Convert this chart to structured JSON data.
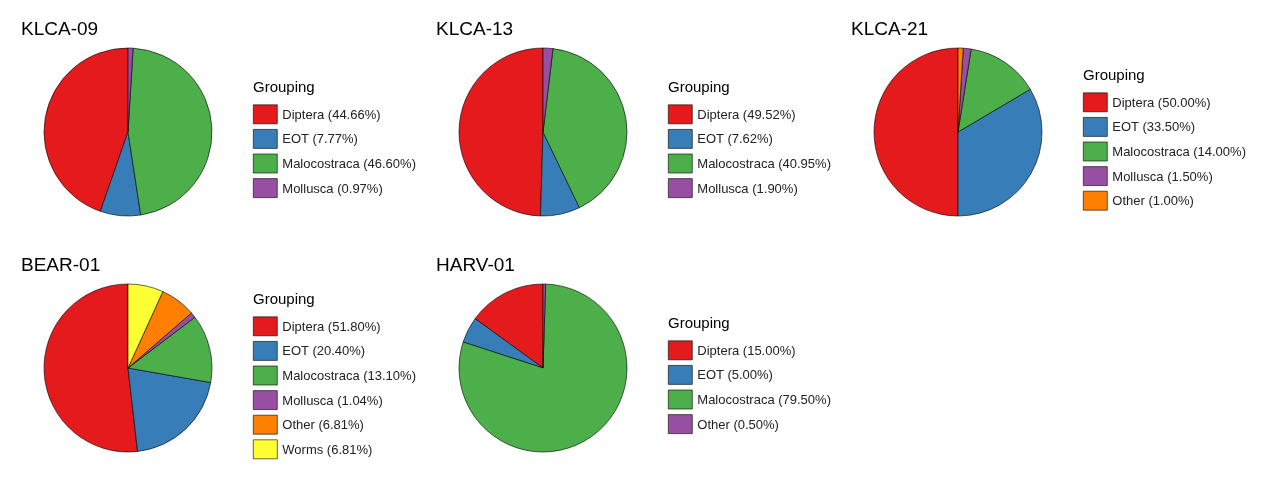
{
  "chart_data": [
    {
      "type": "pie",
      "title": "KLCA-09",
      "legend_title": "Grouping",
      "legend": "right",
      "categories": [
        "Diptera (44.66%)",
        "EOT (7.77%)",
        "Malocostraca (46.60%)",
        "Mollusca (0.97%)"
      ],
      "values": [
        44.66,
        7.77,
        46.6,
        0.97
      ],
      "colors": [
        "#e41a1c",
        "#377eb8",
        "#4daf4a",
        "#984ea3"
      ]
    },
    {
      "type": "pie",
      "title": "KLCA-13",
      "legend_title": "Grouping",
      "legend": "right",
      "categories": [
        "Diptera (49.52%)",
        "EOT (7.62%)",
        "Malocostraca (40.95%)",
        "Mollusca (1.90%)"
      ],
      "values": [
        49.52,
        7.62,
        40.95,
        1.9
      ],
      "colors": [
        "#e41a1c",
        "#377eb8",
        "#4daf4a",
        "#984ea3"
      ]
    },
    {
      "type": "pie",
      "title": "KLCA-21",
      "legend_title": "Grouping",
      "legend": "right",
      "categories": [
        "Diptera (50.00%)",
        "EOT (33.50%)",
        "Malocostraca (14.00%)",
        "Mollusca (1.50%)",
        "Other (1.00%)"
      ],
      "values": [
        50.0,
        33.5,
        14.0,
        1.5,
        1.0
      ],
      "colors": [
        "#e41a1c",
        "#377eb8",
        "#4daf4a",
        "#984ea3",
        "#ff7f00"
      ]
    },
    {
      "type": "pie",
      "title": "BEAR-01",
      "legend_title": "Grouping",
      "legend": "right",
      "categories": [
        "Diptera (51.80%)",
        "EOT (20.40%)",
        "Malocostraca (13.10%)",
        "Mollusca (1.04%)",
        "Other (6.81%)",
        "Worms (6.81%)"
      ],
      "values": [
        51.8,
        20.4,
        13.1,
        1.04,
        6.81,
        6.81
      ],
      "colors": [
        "#e41a1c",
        "#377eb8",
        "#4daf4a",
        "#984ea3",
        "#ff7f00",
        "#ffff33"
      ]
    },
    {
      "type": "pie",
      "title": "HARV-01",
      "legend_title": "Grouping",
      "legend": "right",
      "categories": [
        "Diptera (15.00%)",
        "EOT (5.00%)",
        "Malocostraca (79.50%)",
        "Other (0.50%)"
      ],
      "values": [
        15.0,
        5.0,
        79.5,
        0.5
      ],
      "colors": [
        "#e41a1c",
        "#377eb8",
        "#4daf4a",
        "#984ea3"
      ]
    }
  ]
}
